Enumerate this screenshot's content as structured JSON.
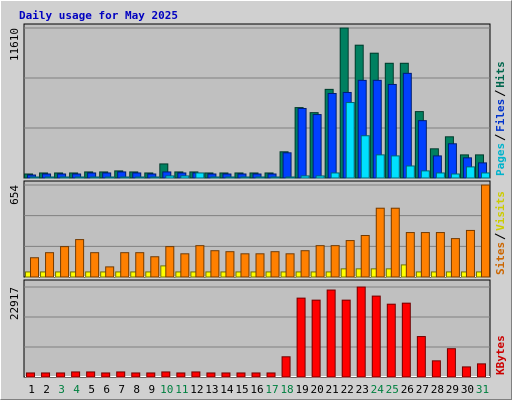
{
  "title": "Daily usage for May 2025",
  "category_colors": [
    "#000000",
    "#000000",
    "#008040",
    "#008040",
    "#000000",
    "#000000",
    "#000000",
    "#000000",
    "#000000",
    "#008040",
    "#008040",
    "#000000",
    "#000000",
    "#000000",
    "#000000",
    "#000000",
    "#008040",
    "#008040",
    "#000000",
    "#000000",
    "#000000",
    "#000000",
    "#000000",
    "#008040",
    "#008040",
    "#000000",
    "#000000",
    "#000000",
    "#000000",
    "#000000",
    "#008040"
  ],
  "chart_data": [
    {
      "type": "bar",
      "categories": [
        "1",
        "2",
        "3",
        "4",
        "5",
        "6",
        "7",
        "8",
        "9",
        "10",
        "11",
        "12",
        "13",
        "14",
        "15",
        "16",
        "17",
        "18",
        "19",
        "20",
        "21",
        "22",
        "23",
        "24",
        "25",
        "26",
        "27",
        "28",
        "29",
        "30",
        "31"
      ],
      "ylim": [
        0,
        11610
      ],
      "yticks": [
        11610
      ],
      "series": [
        {
          "name": "Hits",
          "color": "#008060",
          "values": [
            310,
            390,
            390,
            390,
            470,
            470,
            550,
            470,
            390,
            1090,
            470,
            470,
            390,
            390,
            390,
            390,
            390,
            2030,
            5450,
            5060,
            6860,
            11610,
            10280,
            9660,
            8880,
            8880,
            5140,
            2260,
            3190,
            1790,
            1790
          ]
        },
        {
          "name": "Files",
          "color": "#0040ff",
          "values": [
            230,
            310,
            310,
            310,
            390,
            390,
            470,
            390,
            310,
            470,
            390,
            390,
            310,
            310,
            310,
            310,
            310,
            1950,
            5380,
            4910,
            6540,
            6620,
            7560,
            7560,
            7240,
            8100,
            4440,
            1710,
            2650,
            1560,
            1170
          ]
        },
        {
          "name": "Pages",
          "color": "#00e0ff",
          "values": [
            80,
            80,
            80,
            80,
            80,
            80,
            80,
            80,
            80,
            160,
            160,
            390,
            80,
            80,
            80,
            80,
            80,
            80,
            160,
            160,
            390,
            5840,
            3270,
            1790,
            1710,
            930,
            550,
            390,
            310,
            860,
            390
          ]
        }
      ]
    },
    {
      "type": "bar",
      "ylim": [
        0,
        654
      ],
      "yticks": [
        654
      ],
      "series": [
        {
          "name": "Visits",
          "color": "#ffff00",
          "values": [
            36,
            36,
            36,
            36,
            36,
            36,
            36,
            36,
            36,
            79,
            36,
            36,
            36,
            36,
            36,
            36,
            36,
            36,
            36,
            36,
            36,
            58,
            58,
            58,
            58,
            86,
            36,
            36,
            36,
            36,
            36
          ]
        },
        {
          "name": "Sites",
          "color": "#ff8000",
          "values": [
            137,
            173,
            216,
            266,
            173,
            72,
            173,
            173,
            144,
            216,
            165,
            223,
            187,
            180,
            165,
            165,
            180,
            165,
            187,
            223,
            223,
            259,
            295,
            489,
            489,
            316,
            316,
            316,
            273,
            331,
            654
          ]
        }
      ]
    },
    {
      "type": "bar",
      "ylim": [
        0,
        22917
      ],
      "yticks": [
        22917
      ],
      "series": [
        {
          "name": "KBytes",
          "color": "#ff0000",
          "values": [
            1030,
            1030,
            1030,
            1290,
            1290,
            1030,
            1290,
            1030,
            1030,
            1290,
            1030,
            1290,
            1030,
            1030,
            1030,
            1030,
            1030,
            5150,
            20085,
            19570,
            22145,
            19570,
            22917,
            20600,
            18540,
            18800,
            10300,
            4120,
            7210,
            2575,
            3350
          ]
        }
      ]
    }
  ]
}
